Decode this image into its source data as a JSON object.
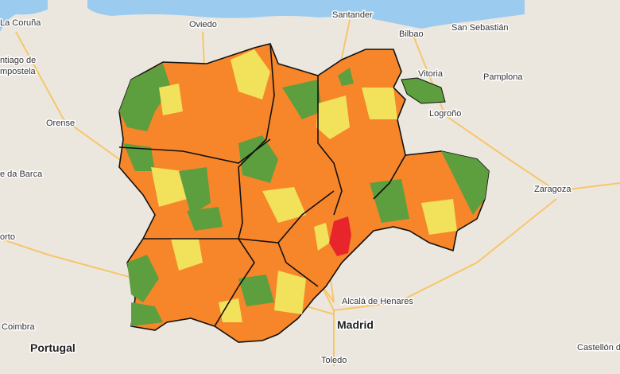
{
  "labels": [
    {
      "text": "La Coruña"
    },
    {
      "text": "Oviedo"
    },
    {
      "text": "Santander"
    },
    {
      "text": "Bilbao"
    },
    {
      "text": "San Sebastián"
    },
    {
      "text": "Vitoria"
    },
    {
      "text": "Pamplona"
    },
    {
      "text": "Logroño"
    },
    {
      "text": "ntiago de"
    },
    {
      "text": "mpostela"
    },
    {
      "text": "Orense"
    },
    {
      "text": "e da Barca"
    },
    {
      "text": "Zaragoza"
    },
    {
      "text": "orto"
    },
    {
      "text": "Portugal"
    },
    {
      "text": "Coimbra"
    },
    {
      "text": "Alcalá de Henares"
    },
    {
      "text": "Madrid"
    },
    {
      "text": "Toledo"
    },
    {
      "text": "Castellón de"
    }
  ]
}
